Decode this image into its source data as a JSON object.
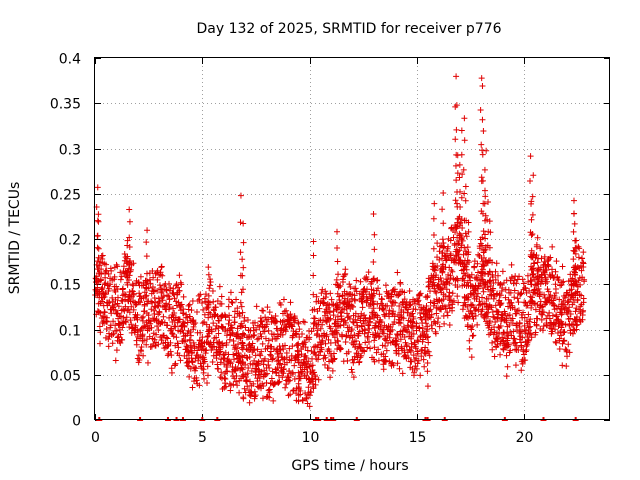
{
  "chart_data": {
    "type": "scatter",
    "title": "Day 132 of 2025, SRMTID for receiver p776",
    "xlabel": "GPS time / hours",
    "ylabel": "SRMTID / TECUs",
    "xlim": [
      0,
      24
    ],
    "ylim": [
      0,
      0.4
    ],
    "x_ticks": [
      0,
      5,
      10,
      15,
      20
    ],
    "x_tick_labels": [
      "0",
      "5",
      "10",
      "15",
      "20"
    ],
    "y_ticks": [
      0,
      0.05,
      0.1,
      0.15,
      0.2,
      0.25,
      0.3,
      0.35,
      0.4
    ],
    "y_tick_labels": [
      "0",
      "0.05",
      "0.1",
      "0.15",
      "0.2",
      "0.25",
      "0.3",
      "0.35",
      "0.4"
    ],
    "grid": true,
    "marker": "plus",
    "series": [
      {
        "name": "SRMTID",
        "color": "#e00000",
        "trend": [
          [
            0.0,
            0.16
          ],
          [
            0.5,
            0.13
          ],
          [
            1.0,
            0.12
          ],
          [
            1.5,
            0.15
          ],
          [
            2.0,
            0.11
          ],
          [
            2.5,
            0.12
          ],
          [
            3.0,
            0.13
          ],
          [
            3.5,
            0.1
          ],
          [
            4.0,
            0.12
          ],
          [
            4.5,
            0.08
          ],
          [
            5.0,
            0.09
          ],
          [
            5.5,
            0.11
          ],
          [
            6.0,
            0.08
          ],
          [
            6.5,
            0.09
          ],
          [
            7.0,
            0.06
          ],
          [
            7.5,
            0.08
          ],
          [
            8.0,
            0.07
          ],
          [
            8.5,
            0.08
          ],
          [
            9.0,
            0.08
          ],
          [
            9.5,
            0.07
          ],
          [
            10.0,
            0.06
          ],
          [
            10.5,
            0.11
          ],
          [
            11.0,
            0.09
          ],
          [
            11.5,
            0.12
          ],
          [
            12.0,
            0.1
          ],
          [
            12.5,
            0.11
          ],
          [
            13.0,
            0.12
          ],
          [
            13.5,
            0.1
          ],
          [
            14.0,
            0.11
          ],
          [
            14.5,
            0.1
          ],
          [
            15.0,
            0.09
          ],
          [
            15.5,
            0.11
          ],
          [
            16.0,
            0.15
          ],
          [
            16.5,
            0.16
          ],
          [
            17.0,
            0.19
          ],
          [
            17.5,
            0.12
          ],
          [
            18.0,
            0.16
          ],
          [
            18.5,
            0.13
          ],
          [
            19.0,
            0.11
          ],
          [
            19.5,
            0.12
          ],
          [
            20.0,
            0.1
          ],
          [
            20.5,
            0.15
          ],
          [
            21.0,
            0.14
          ],
          [
            21.5,
            0.13
          ],
          [
            22.0,
            0.11
          ],
          [
            22.5,
            0.15
          ],
          [
            22.8,
            0.14
          ]
        ],
        "spikes": [
          [
            0.1,
            0.255
          ],
          [
            0.15,
            0.23
          ],
          [
            1.5,
            0.2
          ],
          [
            1.6,
            0.235
          ],
          [
            2.4,
            0.21
          ],
          [
            5.3,
            0.17
          ],
          [
            6.8,
            0.245
          ],
          [
            6.9,
            0.22
          ],
          [
            6.85,
            0.18
          ],
          [
            9.5,
            0.02
          ],
          [
            10.2,
            0.2
          ],
          [
            11.3,
            0.21
          ],
          [
            13.0,
            0.225
          ],
          [
            15.5,
            0.04
          ],
          [
            15.8,
            0.24
          ],
          [
            16.2,
            0.25
          ],
          [
            16.8,
            0.38
          ],
          [
            16.85,
            0.35
          ],
          [
            16.9,
            0.29
          ],
          [
            17.2,
            0.335
          ],
          [
            17.1,
            0.32
          ],
          [
            17.0,
            0.28
          ],
          [
            17.3,
            0.26
          ],
          [
            17.4,
            0.22
          ],
          [
            18.0,
            0.38
          ],
          [
            18.05,
            0.37
          ],
          [
            18.1,
            0.32
          ],
          [
            18.2,
            0.3
          ],
          [
            18.15,
            0.255
          ],
          [
            18.3,
            0.24
          ],
          [
            18.4,
            0.22
          ],
          [
            19.2,
            0.05
          ],
          [
            20.3,
            0.29
          ],
          [
            20.4,
            0.27
          ],
          [
            20.35,
            0.24
          ],
          [
            20.6,
            0.2
          ],
          [
            22.3,
            0.245
          ],
          [
            22.35,
            0.23
          ],
          [
            22.4,
            0.2
          ]
        ],
        "zero_markers": [
          0.2,
          2.1,
          3.4,
          3.8,
          4.1,
          5.0,
          5.7,
          10.3,
          10.4,
          10.8,
          11.0,
          11.1,
          12.2,
          15.4,
          15.5,
          16.3,
          19.1,
          20.9,
          22.4
        ]
      }
    ]
  }
}
